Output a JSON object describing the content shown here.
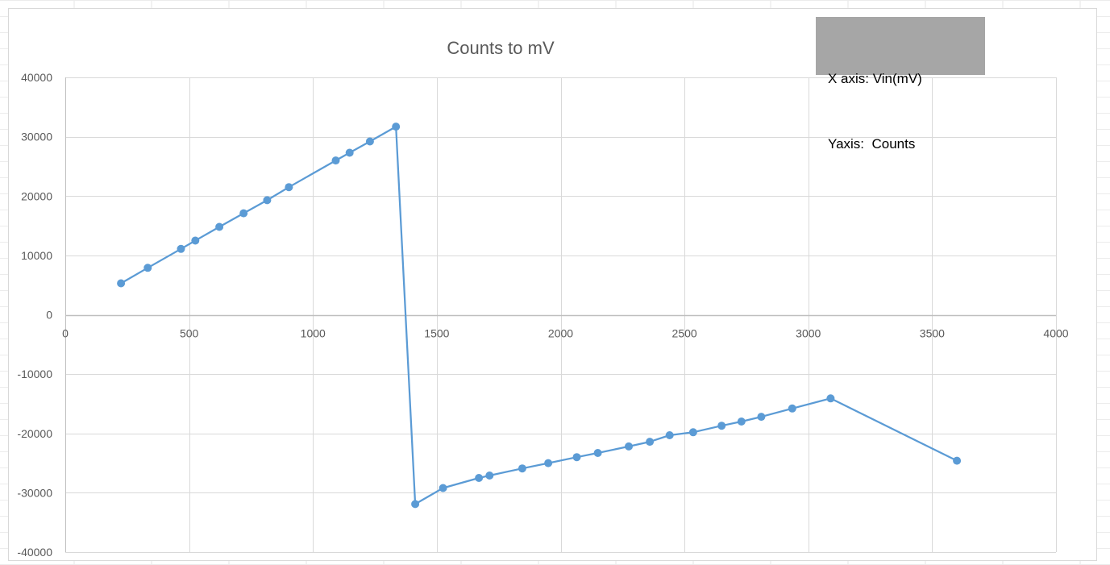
{
  "chart_data": {
    "type": "line",
    "title": "Counts to mV",
    "annotation": [
      "X axis: Vin(mV)",
      "Yaxis:  Counts"
    ],
    "xlim": [
      0,
      4000
    ],
    "ylim": [
      -40000,
      40000
    ],
    "x_ticks": [
      0,
      500,
      1000,
      1500,
      2000,
      2500,
      3000,
      3500,
      4000
    ],
    "y_ticks": [
      40000,
      30000,
      20000,
      10000,
      0,
      -10000,
      -20000,
      -30000,
      -40000
    ],
    "grid": true,
    "markers": true,
    "series": [
      {
        "color": "#5b9bd5",
        "points": [
          [
            225,
            5300
          ],
          [
            333,
            7900
          ],
          [
            467,
            11100
          ],
          [
            525,
            12500
          ],
          [
            622,
            14800
          ],
          [
            720,
            17100
          ],
          [
            815,
            19300
          ],
          [
            903,
            21500
          ],
          [
            1092,
            26000
          ],
          [
            1148,
            27300
          ],
          [
            1230,
            29200
          ],
          [
            1335,
            31700
          ],
          [
            1413,
            -31900
          ],
          [
            1525,
            -29200
          ],
          [
            1670,
            -27500
          ],
          [
            1713,
            -27100
          ],
          [
            1845,
            -25900
          ],
          [
            1950,
            -25000
          ],
          [
            2065,
            -24000
          ],
          [
            2150,
            -23300
          ],
          [
            2275,
            -22200
          ],
          [
            2360,
            -21400
          ],
          [
            2440,
            -20300
          ],
          [
            2535,
            -19800
          ],
          [
            2650,
            -18700
          ],
          [
            2730,
            -18000
          ],
          [
            2810,
            -17200
          ],
          [
            2935,
            -15800
          ],
          [
            3090,
            -14100
          ],
          [
            3600,
            -24600
          ]
        ]
      }
    ]
  }
}
